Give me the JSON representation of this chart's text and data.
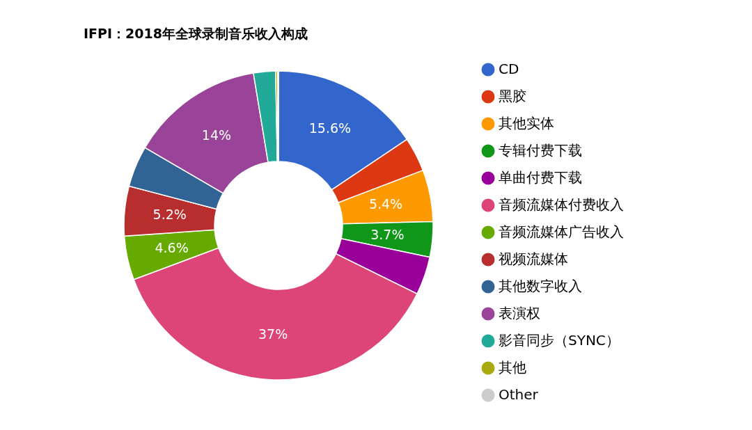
{
  "chart_data": {
    "type": "donut",
    "title": "IFPI：2018年全球录制音乐收入构成",
    "categories": [
      "CD",
      "黑胶",
      "其他实体",
      "专辑付费下载",
      "单曲付费下载",
      "音频流媒体付费收入",
      "音频流媒体广告收入",
      "视频流媒体",
      "其他数字收入",
      "表演权",
      "影音同步（SYNC）",
      "其他",
      "Other"
    ],
    "values": [
      15.6,
      3.6,
      5.4,
      3.7,
      4.0,
      37,
      4.6,
      5.2,
      4.3,
      14,
      2.3,
      0.2,
      0.1
    ],
    "value_labels": [
      "15.6%",
      null,
      "5.4%",
      "3.7%",
      null,
      "37%",
      "4.6%",
      "5.2%",
      null,
      "14%",
      null,
      null,
      null
    ],
    "colors": [
      "#3366cc",
      "#dc3912",
      "#ff9900",
      "#109618",
      "#990099",
      "#dd4477",
      "#66aa00",
      "#b82e2e",
      "#316395",
      "#994499",
      "#22aa99",
      "#aaaa11",
      "#cccccc"
    ],
    "legend": "right"
  }
}
